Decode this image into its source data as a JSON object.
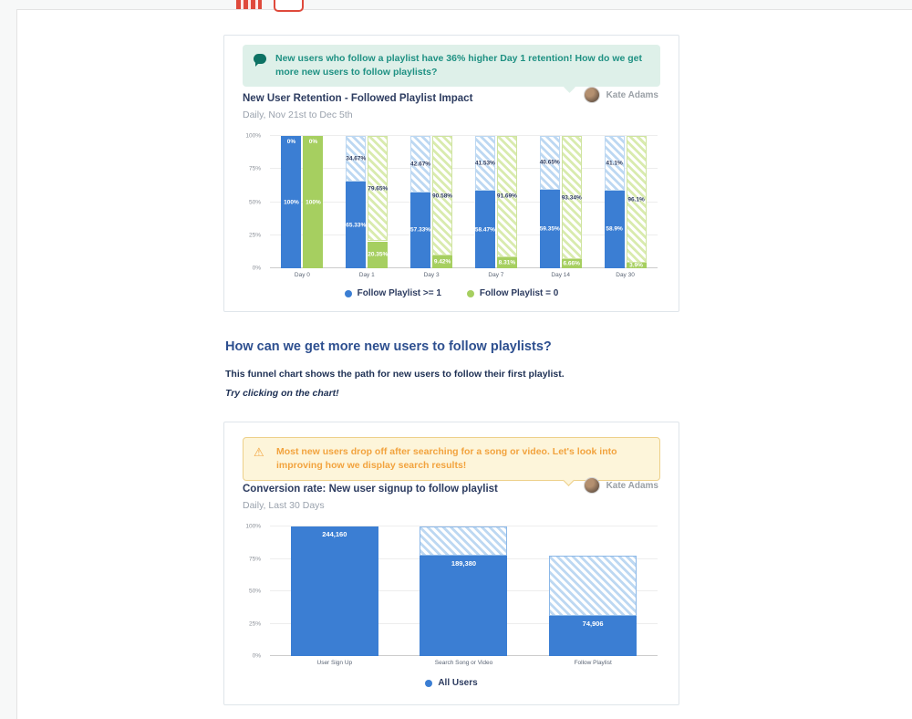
{
  "retention_card": {
    "callout_text": "New users who follow a playlist have 36% higher Day 1 retention! How do we get more new users to follow playlists?",
    "author": "Kate Adams",
    "title": "New User Retention - Followed Playlist Impact",
    "subtitle": "Daily, Nov 21st to Dec 5th"
  },
  "middle": {
    "heading": "How can we get more new users to follow playlists?",
    "body": "This funnel chart shows the path for new users to follow their first playlist.",
    "hint": "Try clicking on the chart!"
  },
  "funnel_card": {
    "callout_text": "Most new users drop off after searching for a song or video. Let's look into improving how we display search results!",
    "author": "Kate Adams",
    "title": "Conversion rate: New user signup to follow playlist",
    "subtitle": "Daily, Last 30 Days"
  },
  "colors": {
    "blue": "#3b7ed3",
    "green": "#a6cf60",
    "teal_text": "#1f9183",
    "warning_text": "#f2a33e",
    "navy": "#2d3c60"
  },
  "chart_data": [
    {
      "type": "bar",
      "subtype": "stacked-retention",
      "title": "New User Retention - Followed Playlist Impact",
      "subtitle": "Daily, Nov 21st to Dec 5th",
      "categories": [
        "Day 0",
        "Day 1",
        "Day 3",
        "Day 7",
        "Day 14",
        "Day 30"
      ],
      "y_ticks": [
        "100%",
        "75%",
        "50%",
        "25%",
        "0%"
      ],
      "ylim": [
        0,
        100
      ],
      "grid": true,
      "legend_position": "bottom",
      "series": [
        {
          "name": "Follow Playlist >= 1",
          "color": "#3b7ed3",
          "hatch": "hatch-blue",
          "retained_pct": [
            100,
            65.33,
            57.33,
            58.47,
            59.35,
            58.9
          ],
          "churned_pct": [
            0,
            34.67,
            42.67,
            41.53,
            40.65,
            41.1
          ]
        },
        {
          "name": "Follow Playlist = 0",
          "color": "#a6cf60",
          "hatch": "hatch-green",
          "retained_pct": [
            100,
            20.35,
            9.42,
            8.31,
            6.66,
            3.9
          ],
          "churned_pct": [
            0,
            79.65,
            90.58,
            91.69,
            93.34,
            96.1
          ]
        }
      ]
    },
    {
      "type": "bar",
      "subtype": "funnel",
      "title": "Conversion rate: New user signup to follow playlist",
      "subtitle": "Daily, Last 30 Days",
      "categories": [
        "User Sign Up",
        "Search Song or Video",
        "Follow Playlist"
      ],
      "y_ticks": [
        "100%",
        "75%",
        "50%",
        "25%",
        "0%"
      ],
      "ylim": [
        0,
        100
      ],
      "grid": true,
      "legend_position": "bottom",
      "series": [
        {
          "name": "All Users",
          "color": "#3b7ed3",
          "values": [
            244160,
            189380,
            74906
          ],
          "value_labels": [
            "244,160",
            "189,380",
            "74,906"
          ],
          "pct": [
            100,
            77.57,
            30.68
          ],
          "hatch_top_pct": [
            100,
            100,
            77.57
          ]
        }
      ]
    }
  ]
}
